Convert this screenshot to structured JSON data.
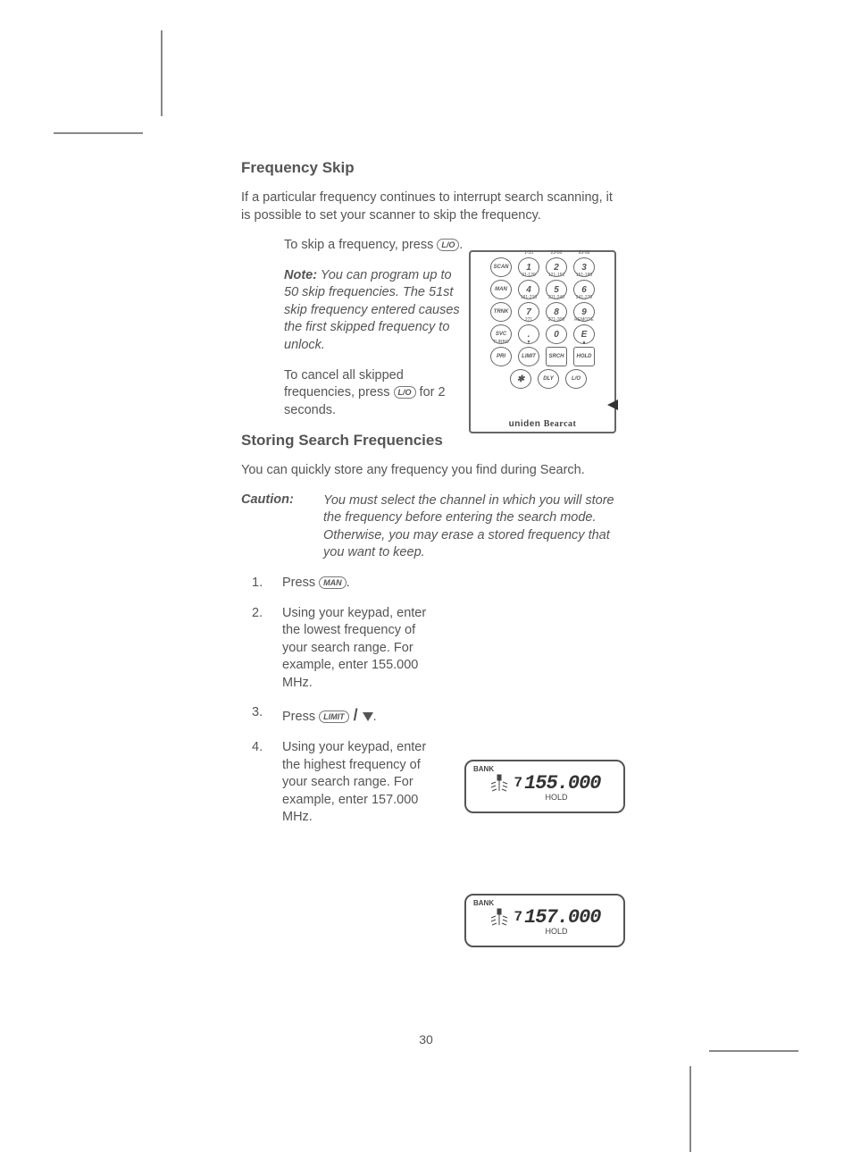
{
  "page_number": "30",
  "section1": {
    "title": "Frequency Skip",
    "intro": "If a particular frequency continues to interrupt search scanning, it is possible to set your scanner to skip the frequency.",
    "skip_pre": "To skip a frequency, press ",
    "skip_key": "L/O",
    "note_label": "Note:",
    "note_body": " You can program up to 50 skip frequencies. The 51st skip frequency entered causes the first skipped frequency to unlock.",
    "cancel_pre": "To cancel all skipped frequencies, press ",
    "cancel_key": "L/O",
    "cancel_post": " for 2 seconds."
  },
  "section2": {
    "title": "Storing Search Frequencies",
    "intro": "You can quickly store any frequency you find during Search.",
    "caution_label": "Caution:",
    "caution_text": "You must select the channel in which you will store the frequency before entering the search mode. Otherwise, you may erase a stored frequency that you want to keep.",
    "steps": [
      {
        "n": "1.",
        "pre": "Press ",
        "key": "MAN",
        "post": "."
      },
      {
        "n": "2.",
        "text": "Using your keypad, enter the lowest frequency of your search range. For example, enter 155.000 MHz."
      },
      {
        "n": "3.",
        "pre": "Press  ",
        "key": "LIMIT",
        "sep": " / ",
        "tri": true,
        "post": "."
      },
      {
        "n": "4.",
        "text": "Using your keypad, enter the highest frequency of your search range. For example, enter 157.000 MHz."
      }
    ]
  },
  "keypad": {
    "rows": [
      [
        {
          "l": "SCAN"
        },
        {
          "l": "1",
          "a": "1-33"
        },
        {
          "l": "2",
          "a": "23-65"
        },
        {
          "l": "3",
          "a": "65-98"
        }
      ],
      [
        {
          "l": "MAN"
        },
        {
          "l": "4",
          "a": "91-120"
        },
        {
          "l": "5",
          "a": "121-153"
        },
        {
          "l": "6",
          "a": "151-180"
        }
      ],
      [
        {
          "l": "TRNK"
        },
        {
          "l": "7",
          "a": "181-210"
        },
        {
          "l": "8",
          "a": "211-240"
        },
        {
          "l": "9",
          "a": "241-270"
        }
      ],
      [
        {
          "l": "SVC"
        },
        {
          "l": ".",
          "a": "271"
        },
        {
          "l": "0",
          "a": "271-300"
        },
        {
          "l": "E",
          "a": "REMOTE"
        }
      ],
      [
        {
          "l": "PRI",
          "a": "TURBO"
        },
        {
          "l": "LIMIT",
          "a": "▼"
        },
        {
          "l": "SRCH",
          "sq": true
        },
        {
          "l": "HOLD",
          "sq": true,
          "a": "▲"
        }
      ],
      [
        {
          "l": "✱"
        },
        {
          "l": "DLY",
          "a": "→"
        },
        {
          "l": "L/O"
        }
      ]
    ],
    "brand1": "uniden",
    "brand2": "Bearcat"
  },
  "lcd1": {
    "bank": "BANK",
    "ch": "7",
    "freq": "155.000",
    "hold": "HOLD"
  },
  "lcd2": {
    "bank": "BANK",
    "ch": "7",
    "freq": "157.000",
    "hold": "HOLD"
  },
  "style": {
    "text_color": "#555555",
    "border_color": "#666666",
    "bg": "#ffffff",
    "body_fontsize": 14.5,
    "h2_fontsize": 17
  }
}
